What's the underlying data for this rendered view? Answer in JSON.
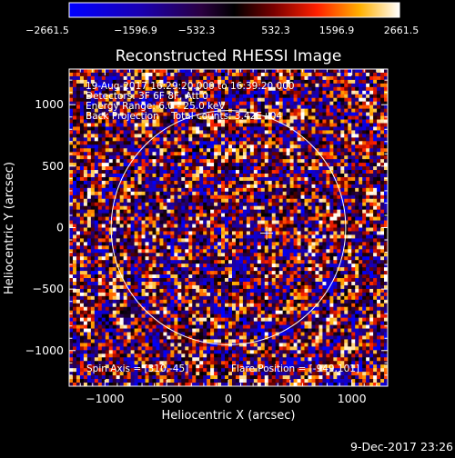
{
  "chart_data": {
    "type": "heatmap",
    "title": "Reconstructed RHESSI Image",
    "xlabel": "Heliocentric X (arcsec)",
    "ylabel": "Heliocentric Y (arcsec)",
    "xlim": [
      -1290,
      1290
    ],
    "ylim": [
      -1290,
      1290
    ],
    "x_ticks": [
      -1000,
      -500,
      0,
      500,
      1000
    ],
    "y_ticks": [
      -1000,
      -500,
      0,
      500,
      1000
    ],
    "x_tick_labels": [
      "−1000",
      "−500",
      "0",
      "500",
      "1000"
    ],
    "y_tick_labels": [
      "−1000",
      "−500",
      "0",
      "500",
      "1000"
    ],
    "colorbar": {
      "min": -2661.5,
      "max": 2661.5,
      "tick_labels": [
        "−2661.5",
        "−1596.9",
        "−532.3",
        "532.3",
        "1596.9",
        "2661.5"
      ],
      "colormap": [
        "#0000ff",
        "#000000",
        "#ff0000",
        "#ffffff"
      ]
    },
    "annotations": {
      "time_range": "19-Aug-2017 16:29:20.000 to 16:39:20.000",
      "detectors": "Detectors: 3F 6F 8F, Att 0",
      "energy": "Energy Range: 6.0 - 25.0 keV",
      "method": "Back Projection    Total counts: 3.42E+04",
      "spin_axis": "Spin Axis = [310,-45]",
      "flare_position": "Flare Position = [-949,101]"
    },
    "solar_limb_radius_arcsec": 950,
    "cross_marker": [
      310,
      -45
    ],
    "timestamp": "9-Dec-2017 23:26"
  }
}
